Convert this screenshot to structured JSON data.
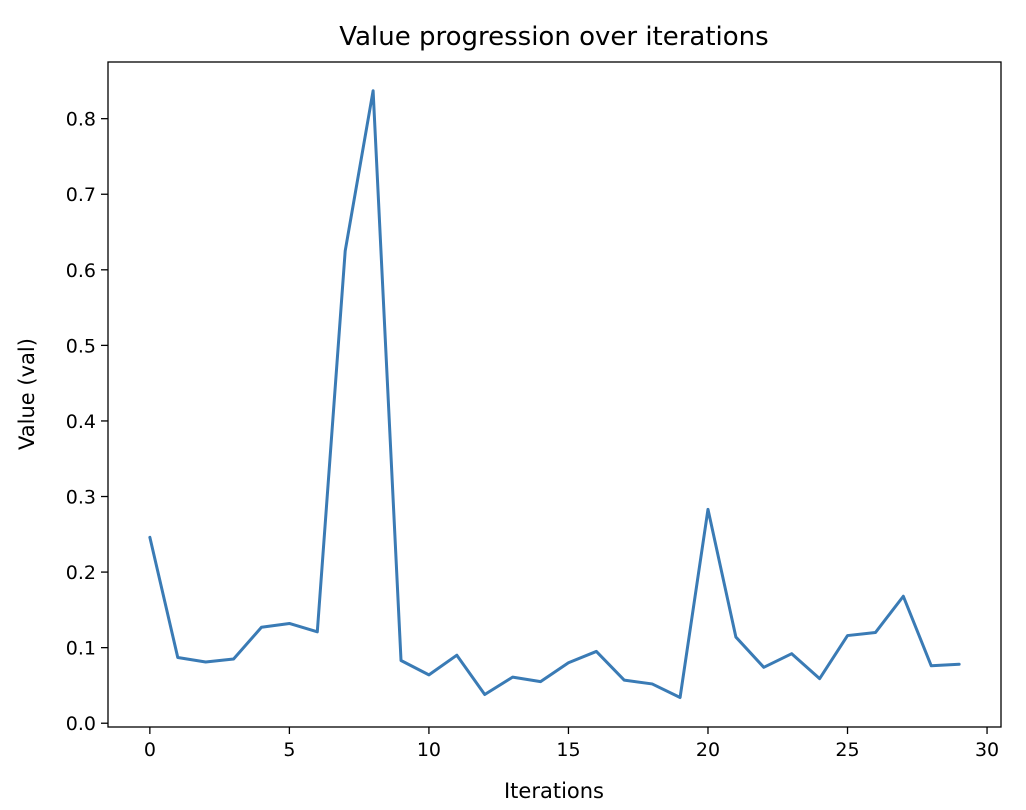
{
  "chart_data": {
    "type": "line",
    "title": "Value progression over iterations",
    "xlabel": "Iterations",
    "ylabel": "Value (val)",
    "xlim": [
      -1.5,
      30.5
    ],
    "ylim": [
      -0.005,
      0.875
    ],
    "xticks": [
      0,
      5,
      10,
      15,
      20,
      25,
      30
    ],
    "yticks": [
      0.0,
      0.1,
      0.2,
      0.3,
      0.4,
      0.5,
      0.6,
      0.7,
      0.8
    ],
    "xtick_labels": [
      "0",
      "5",
      "10",
      "15",
      "20",
      "25",
      "30"
    ],
    "ytick_labels": [
      "0.0",
      "0.1",
      "0.2",
      "0.3",
      "0.4",
      "0.5",
      "0.6",
      "0.7",
      "0.8"
    ],
    "grid": false,
    "line_color": "#3a7bb5",
    "series": [
      {
        "x": [
          0,
          1,
          2,
          3,
          4,
          5,
          6,
          7,
          8,
          9,
          10,
          11,
          12,
          13,
          14,
          15,
          16,
          17,
          18,
          19,
          20,
          21,
          22,
          23,
          24,
          25,
          26,
          27,
          28,
          29
        ],
        "values": [
          0.246,
          0.087,
          0.081,
          0.085,
          0.127,
          0.132,
          0.121,
          0.625,
          0.837,
          0.083,
          0.064,
          0.09,
          0.038,
          0.061,
          0.055,
          0.08,
          0.095,
          0.057,
          0.052,
          0.034,
          0.283,
          0.114,
          0.074,
          0.092,
          0.059,
          0.116,
          0.12,
          0.168,
          0.076,
          0.078
        ]
      }
    ]
  }
}
